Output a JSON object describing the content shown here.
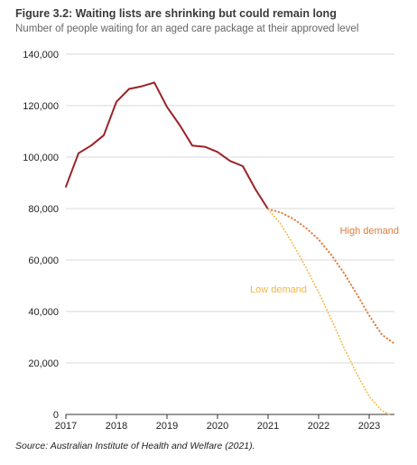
{
  "title": "Figure 3.2: Waiting lists are shrinking but could remain long",
  "subtitle": "Number of people waiting for an aged care package at their approved level",
  "source": "Source: Australian Institute of Health and Welfare (2021).",
  "colors": {
    "actual": "#9b2226",
    "high": "#e07b39",
    "low": "#f2b544",
    "grid": "#d9d9d9"
  },
  "chart_data": {
    "type": "line",
    "xlim": [
      2017,
      2023.5
    ],
    "ylim": [
      0,
      140000
    ],
    "x_ticks": [
      2017,
      2018,
      2019,
      2020,
      2021,
      2022,
      2023
    ],
    "x_tick_labels": [
      "2017",
      "2018",
      "2019",
      "2020",
      "2021",
      "2022",
      "2023"
    ],
    "y_ticks": [
      0,
      20000,
      40000,
      60000,
      80000,
      100000,
      120000,
      140000
    ],
    "y_tick_labels": [
      "0",
      "20,000",
      "40,000",
      "60,000",
      "80,000",
      "100,000",
      "120,000",
      "140,000"
    ],
    "grid": "horizontal",
    "series": [
      {
        "key": "actual",
        "style": "solid",
        "x": [
          2017.0,
          2017.25,
          2017.5,
          2017.75,
          2018.0,
          2018.25,
          2018.5,
          2018.75,
          2019.0,
          2019.25,
          2019.5,
          2019.75,
          2020.0,
          2020.25,
          2020.5,
          2020.75,
          2021.0
        ],
        "y": [
          88500,
          101500,
          104500,
          108500,
          121500,
          126500,
          127500,
          129000,
          119500,
          112500,
          104500,
          104000,
          102000,
          98500,
          96500,
          87500,
          79800
        ]
      },
      {
        "key": "high",
        "name": "High demand",
        "style": "dotted",
        "x": [
          2021.0,
          2021.25,
          2021.5,
          2021.75,
          2022.0,
          2022.25,
          2022.5,
          2022.75,
          2023.0,
          2023.25,
          2023.5
        ],
        "y": [
          79800,
          78500,
          76000,
          72500,
          68000,
          62000,
          55000,
          47000,
          38500,
          31000,
          27500
        ]
      },
      {
        "key": "low",
        "name": "Low demand",
        "style": "dotted",
        "x": [
          2021.0,
          2021.25,
          2021.5,
          2021.75,
          2022.0,
          2022.25,
          2022.5,
          2022.75,
          2023.0,
          2023.25,
          2023.4
        ],
        "y": [
          79800,
          74000,
          66000,
          57000,
          47500,
          37000,
          26000,
          16000,
          7000,
          1500,
          0
        ]
      }
    ],
    "annotations": [
      {
        "text": "High demand",
        "series": "high"
      },
      {
        "text": "Low demand",
        "series": "low"
      }
    ]
  }
}
